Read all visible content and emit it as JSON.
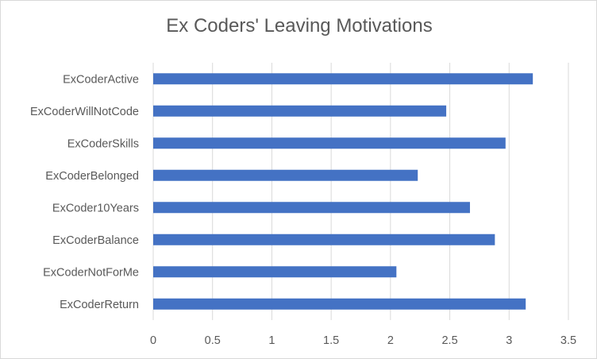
{
  "chart_data": {
    "type": "bar",
    "orientation": "horizontal",
    "title": "Ex Coders' Leaving Motivations",
    "xlabel": "",
    "ylabel": "",
    "categories": [
      "ExCoderActive",
      "ExCoderWillNotCode",
      "ExCoderSkills",
      "ExCoderBelonged",
      "ExCoder10Years",
      "ExCoderBalance",
      "ExCoderNotForMe",
      "ExCoderReturn"
    ],
    "values": [
      3.2,
      2.47,
      2.97,
      2.23,
      2.67,
      2.88,
      2.05,
      3.14
    ],
    "xlim": [
      0,
      3.5
    ],
    "xticks": [
      "0",
      "0.5",
      "1",
      "1.5",
      "2",
      "2.5",
      "3",
      "3.5"
    ],
    "grid": true,
    "legend": "none",
    "bar_color": "#4472C4",
    "grid_color": "#d9d9d9"
  }
}
